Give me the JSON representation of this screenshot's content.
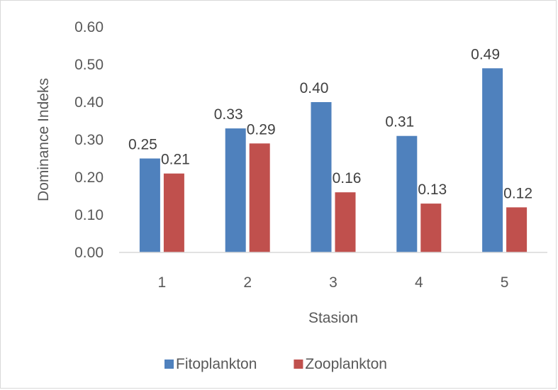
{
  "chart_data": {
    "type": "bar",
    "title": "",
    "xlabel": "Stasion",
    "ylabel": "Dominance Indeks",
    "categories": [
      "1",
      "2",
      "3",
      "4",
      "5"
    ],
    "series": [
      {
        "name": "Fitoplankton",
        "color": "#4f81bd",
        "values": [
          0.25,
          0.33,
          0.4,
          0.31,
          0.49
        ],
        "labels": [
          "0.25",
          "0.33",
          "0.40",
          "0.31",
          "0.49"
        ]
      },
      {
        "name": "Zooplankton",
        "color": "#c0504d",
        "values": [
          0.21,
          0.29,
          0.16,
          0.13,
          0.12
        ],
        "labels": [
          "0.21",
          "0.29",
          "0.16",
          "0.13",
          "0.12"
        ]
      }
    ],
    "ylim": [
      0,
      0.6
    ],
    "yticks": [
      "0.00",
      "0.10",
      "0.20",
      "0.30",
      "0.40",
      "0.50",
      "0.60"
    ],
    "grid": false,
    "legend": "bottom"
  }
}
